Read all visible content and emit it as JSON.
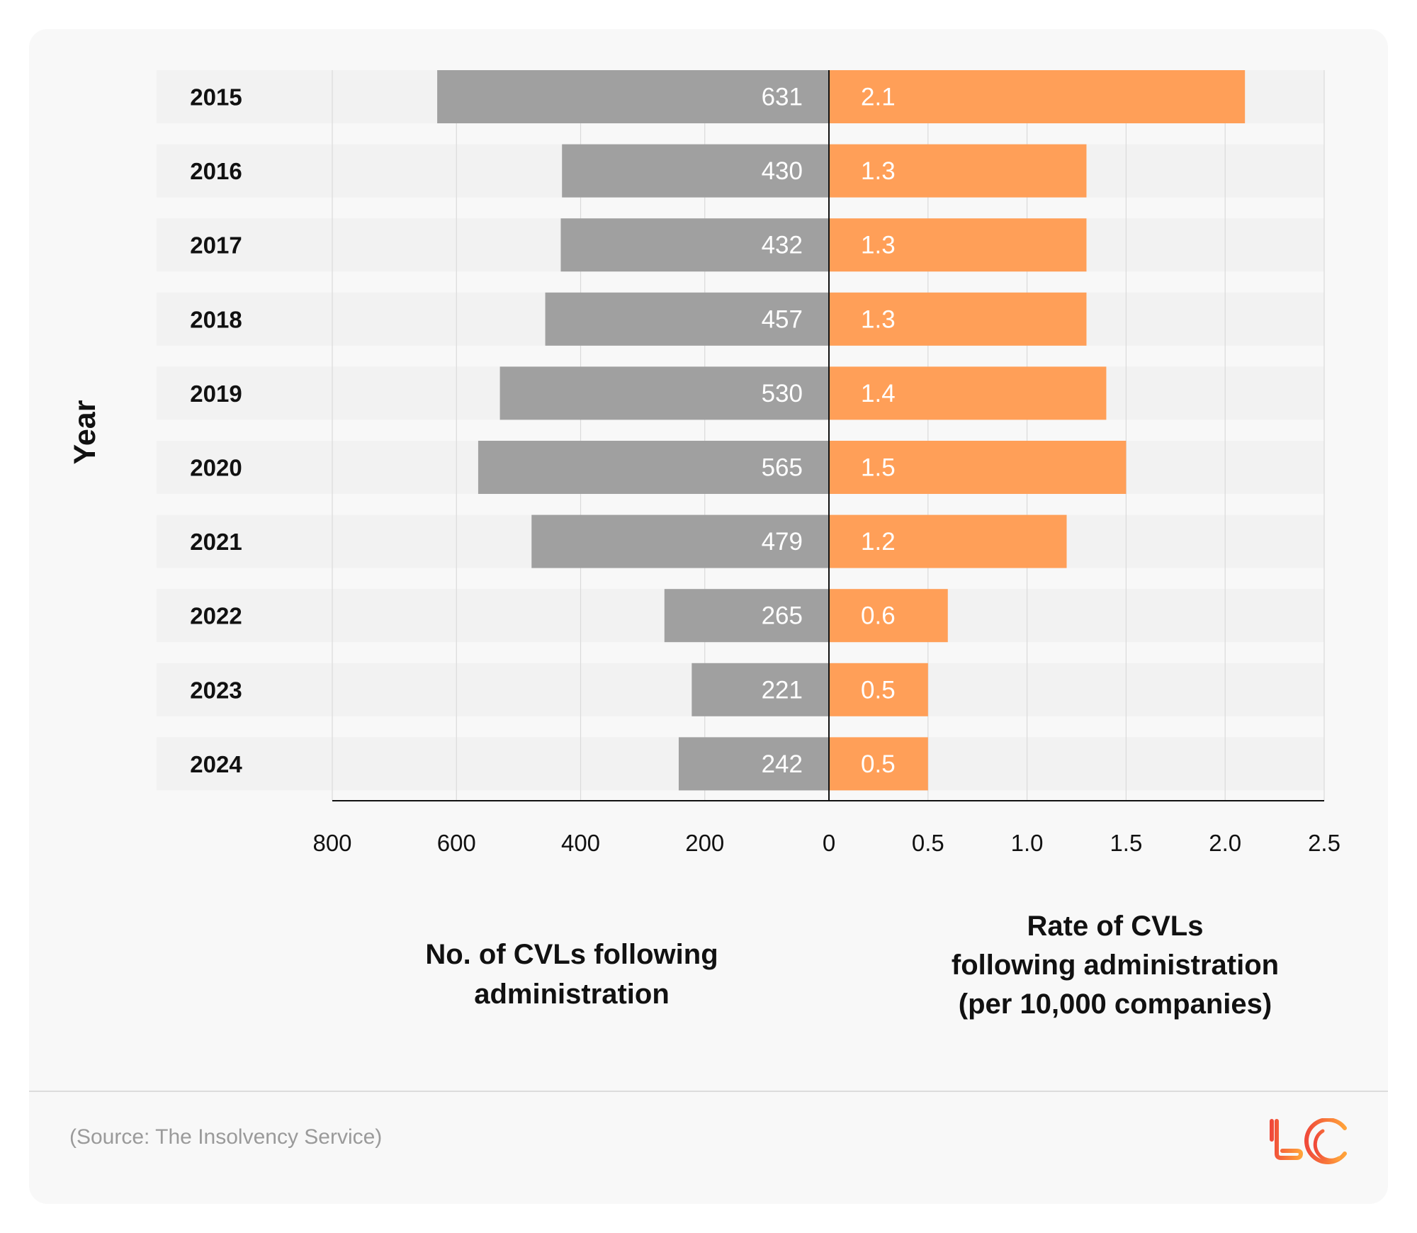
{
  "chart_data": {
    "type": "bar",
    "orientation": "horizontal",
    "layout": "back-to-back",
    "categories": [
      "2015",
      "2016",
      "2017",
      "2018",
      "2019",
      "2020",
      "2021",
      "2022",
      "2023",
      "2024"
    ],
    "y_label": "Year",
    "series": [
      {
        "values": [
          631,
          430,
          432,
          457,
          530,
          565,
          479,
          265,
          221,
          242
        ],
        "color": "#a0a0a0",
        "side": "left",
        "axis_title_lines": [
          "No. of CVLs following",
          "administration"
        ],
        "xlim": [
          0,
          800
        ],
        "ticks": [
          "800",
          "600",
          "400",
          "200",
          "0"
        ]
      },
      {
        "values": [
          2.1,
          1.3,
          1.3,
          1.3,
          1.4,
          1.5,
          1.2,
          0.6,
          0.5,
          0.5
        ],
        "color": "#ff9f58",
        "side": "right",
        "axis_title_lines": [
          "Rate of CVLs",
          "following administration",
          "(per 10,000 companies)"
        ],
        "xlim": [
          0,
          2.5
        ],
        "ticks": [
          "0.5",
          "1.0",
          "1.5",
          "2.0",
          "2.5"
        ]
      }
    ],
    "value_labels": {
      "left": [
        "631",
        "430",
        "432",
        "457",
        "530",
        "565",
        "479",
        "265",
        "221",
        "242"
      ],
      "right": [
        "2.1",
        "1.3",
        "1.3",
        "1.3",
        "1.4",
        "1.5",
        "1.2",
        "0.6",
        "0.5",
        "0.5"
      ]
    },
    "grid": true
  },
  "footer": {
    "source": "(Source: The Insolvency Service)",
    "logo": "LC"
  },
  "colors": {
    "card": "#f8f8f8",
    "row_band": "#f2f2f2",
    "gray_bar": "#a0a0a0",
    "orange_bar": "#ff9f58",
    "logo_start": "#f04a3a",
    "logo_end": "#ffa23a"
  }
}
